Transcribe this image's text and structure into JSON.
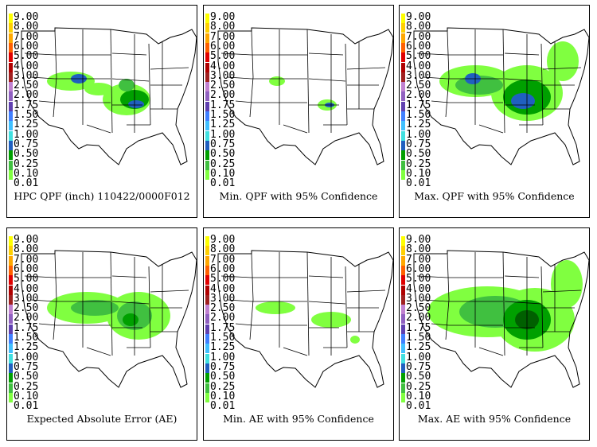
{
  "legend": {
    "labels": [
      "9.00",
      "8.00",
      "7.00",
      "6.00",
      "5.00",
      "4.00",
      "3.00",
      "2.50",
      "2.00",
      "1.75",
      "1.50",
      "1.25",
      "1.00",
      "0.75",
      "0.50",
      "0.25",
      "0.10",
      "0.01"
    ],
    "colors": [
      "#ffff00",
      "#ffd000",
      "#ffa800",
      "#ff6000",
      "#e00000",
      "#b00000",
      "#a02020",
      "#c080d0",
      "#9060c0",
      "#6040b0",
      "#4080ff",
      "#40c0ff",
      "#40e0e0",
      "#2060c0",
      "#00a000",
      "#40c040",
      "#80ff40",
      "#ffffff"
    ]
  },
  "panels": [
    {
      "caption": "HPC QPF (inch) 110422/0000F012",
      "level": "medium"
    },
    {
      "caption": "Min. QPF with 95% Confidence",
      "level": "low"
    },
    {
      "caption": "Max. QPF with 95% Confidence",
      "level": "high"
    },
    {
      "caption": "Expected Absolute Error (AE)",
      "level": "medium-ae"
    },
    {
      "caption": "Min. AE with 95% Confidence",
      "level": "low-ae"
    },
    {
      "caption": "Max. AE with 95% Confidence",
      "level": "high-ae"
    }
  ],
  "colors": {
    "light_green": "#80ff40",
    "mid_green": "#40c040",
    "dark_green": "#00a000",
    "blue": "#2060c0",
    "light_blue": "#40a0ff"
  }
}
